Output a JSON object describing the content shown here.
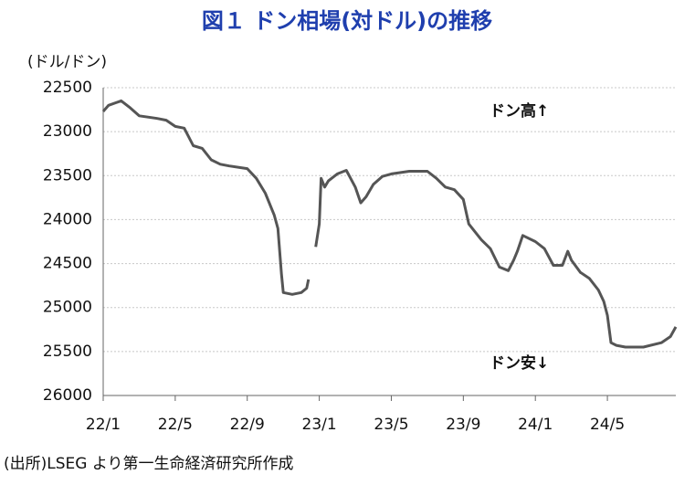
{
  "chart_data": {
    "type": "line",
    "title": "図１ ドン相場(対ドル)の推移",
    "y_label": "(ドル/ドン)",
    "source": "(出所)LSEG より第一生命経済研究所作成",
    "annotations": [
      "ドン高↑",
      "ドン安↓"
    ],
    "color": "#555555",
    "grid": true,
    "y_inverted": true,
    "ylim": [
      22500,
      26000
    ],
    "yticks": [
      22500,
      23000,
      23500,
      24000,
      24500,
      25000,
      25500,
      26000
    ],
    "xlim": [
      0,
      31.8
    ],
    "xticks": [
      {
        "value": 0,
        "label": "22/1"
      },
      {
        "value": 4,
        "label": "22/5"
      },
      {
        "value": 8,
        "label": "22/9"
      },
      {
        "value": 12,
        "label": "23/1"
      },
      {
        "value": 16,
        "label": "23/5"
      },
      {
        "value": 20,
        "label": "23/9"
      },
      {
        "value": 24,
        "label": "24/1"
      },
      {
        "value": 28,
        "label": "24/5"
      }
    ],
    "x": [
      0,
      0.3,
      1,
      1.5,
      2,
      3,
      3.5,
      4,
      4.5,
      5,
      5.5,
      6,
      6.5,
      7,
      8,
      8.5,
      9,
      9.5,
      9.7,
      9.9,
      10,
      10.5,
      11,
      11.3,
      11.4,
      11.6,
      11.8,
      12,
      12.1,
      12.3,
      12.5,
      13,
      13.5,
      14,
      14.3,
      14.6,
      15,
      15.5,
      16,
      17,
      18,
      18.5,
      19,
      19.5,
      20,
      20.3,
      21,
      21.5,
      22,
      22.5,
      22.8,
      23,
      23.3,
      24,
      24.5,
      25,
      25.5,
      25.8,
      26,
      26.5,
      27,
      27.5,
      27.8,
      28,
      28.2,
      28.5,
      29,
      30,
      31,
      31.5,
      31.8
    ],
    "values": [
      22770,
      22700,
      22650,
      22730,
      22820,
      22850,
      22870,
      22940,
      22960,
      23160,
      23190,
      23320,
      23370,
      23390,
      23420,
      23530,
      23700,
      23950,
      24100,
      24620,
      24830,
      24850,
      24830,
      24780,
      24680,
      null,
      24310,
      24050,
      23530,
      23630,
      23560,
      23480,
      23440,
      23630,
      23810,
      23740,
      23600,
      23510,
      23480,
      23450,
      23450,
      23530,
      23630,
      23660,
      23770,
      24050,
      24230,
      24330,
      24540,
      24580,
      24460,
      24360,
      24180,
      24250,
      24330,
      24520,
      24520,
      24360,
      24460,
      24600,
      24670,
      24800,
      24930,
      25090,
      25400,
      25430,
      25450,
      25450,
      25400,
      25330,
      25220
    ]
  }
}
